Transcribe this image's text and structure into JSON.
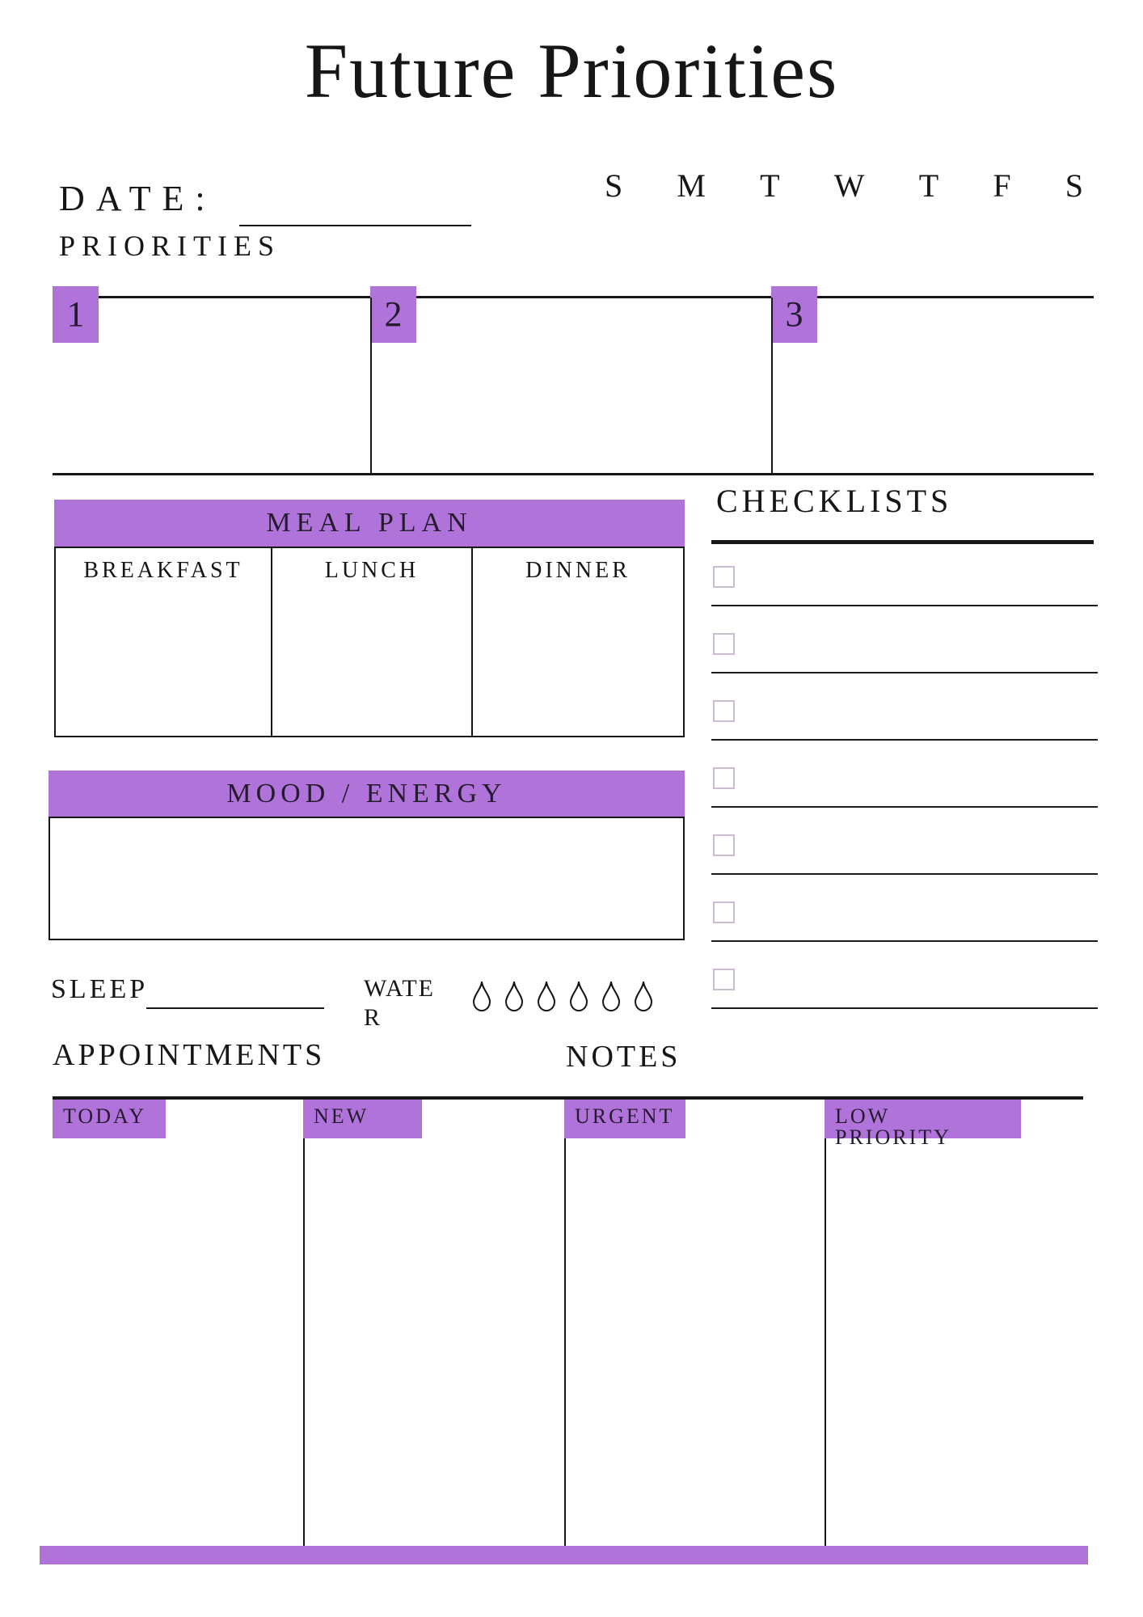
{
  "page": {
    "title": "Future Priorities"
  },
  "date": {
    "label": "DATE:"
  },
  "week_days": [
    "S",
    "M",
    "T",
    "W",
    "T",
    "F",
    "S"
  ],
  "priorities": {
    "heading": "PRIORITIES",
    "slots": [
      "1",
      "2",
      "3"
    ]
  },
  "meal_plan": {
    "heading": "MEAL PLAN",
    "columns": [
      "BREAKFAST",
      "LUNCH",
      "DINNER"
    ]
  },
  "checklists": {
    "heading": "CHECKLISTS",
    "row_count": 7
  },
  "mood_energy": {
    "heading": "MOOD / ENERGY"
  },
  "sleep": {
    "label": "SLEEP"
  },
  "water": {
    "label": "WATER",
    "droplet_count": 6
  },
  "appointments": {
    "heading": "APPOINTMENTS"
  },
  "notes": {
    "heading": "NOTES"
  },
  "task_columns": [
    "TODAY",
    "NEW",
    "URGENT",
    "LOW PRIORITY"
  ],
  "colors": {
    "accent": "#b073da",
    "checkbox_border": "#c9bcd2",
    "ink": "#161616"
  }
}
